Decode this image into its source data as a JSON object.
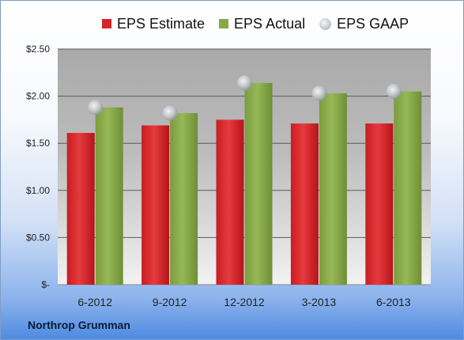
{
  "chart_data": {
    "type": "bar",
    "categories": [
      "6-2012",
      "9-2012",
      "12-2012",
      "3-2013",
      "6-2013"
    ],
    "series": [
      {
        "name": "EPS Estimate",
        "values": [
          1.61,
          1.69,
          1.75,
          1.71,
          1.71
        ],
        "color": "#d6242a"
      },
      {
        "name": "EPS Actual",
        "values": [
          1.88,
          1.82,
          2.14,
          2.03,
          2.05
        ],
        "color": "#86a848"
      },
      {
        "name": "EPS GAAP",
        "values": [
          1.88,
          1.82,
          2.14,
          2.03,
          2.05
        ],
        "color": "#b8bcc4",
        "marker": "circle"
      }
    ],
    "ylim": [
      0,
      2.5
    ],
    "yticks": [
      {
        "value": 0,
        "label": "$-"
      },
      {
        "value": 0.5,
        "label": "$0.50"
      },
      {
        "value": 1.0,
        "label": "$1.00"
      },
      {
        "value": 1.5,
        "label": "$1.50"
      },
      {
        "value": 2.0,
        "label": "$2.00"
      },
      {
        "value": 2.5,
        "label": "$2.50"
      }
    ],
    "legend": "top",
    "grid": true
  },
  "company_label": "Northrop Grumman"
}
